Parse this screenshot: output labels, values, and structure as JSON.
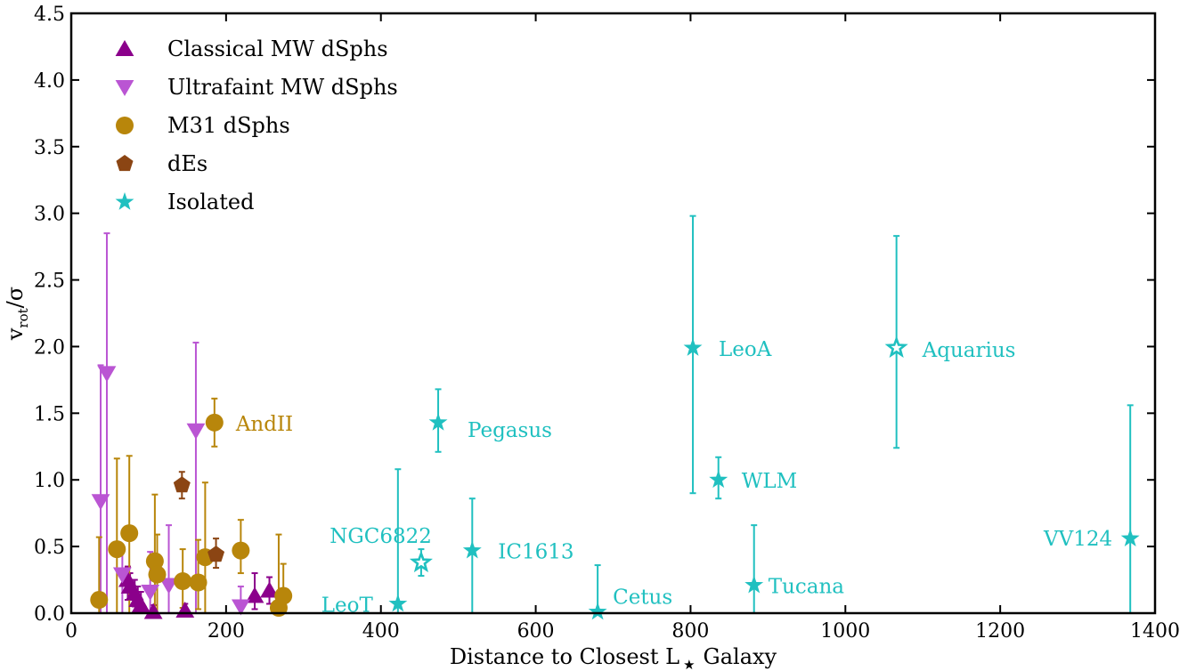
{
  "chart_data": {
    "type": "scatter",
    "title": "",
    "xlabel": "Distance to Closest L",
    "xlabel_subscript": "★",
    "xlabel_suffix": "Galaxy",
    "ylabel": "v",
    "ylabel_subscript": "rot",
    "ylabel_suffix": "/σ",
    "xlim": [
      0,
      1400
    ],
    "ylim": [
      0,
      4.5
    ],
    "xticks": [
      0,
      200,
      400,
      600,
      800,
      1000,
      1200,
      1400
    ],
    "yticks": [
      0.0,
      0.5,
      1.0,
      1.5,
      2.0,
      2.5,
      3.0,
      3.5,
      4.0,
      4.5
    ],
    "grid": false,
    "legend_position": "top-left",
    "series": [
      {
        "name": "Classical MW dSphs",
        "marker": "triangle-up",
        "color": "#8B008B",
        "points": [
          {
            "x": 73,
            "y": 0.25,
            "err_lo": 0.15,
            "err_hi": 0.1
          },
          {
            "x": 76,
            "y": 0.2,
            "err_lo": 0.1,
            "err_hi": 0.1
          },
          {
            "x": 82,
            "y": 0.15,
            "err_lo": 0.1,
            "err_hi": 0.1
          },
          {
            "x": 86,
            "y": 0.1,
            "err_lo": 0.1,
            "err_hi": 0.1
          },
          {
            "x": 90,
            "y": 0.06,
            "err_lo": 0.06,
            "err_hi": 0.1
          },
          {
            "x": 106,
            "y": 0.01,
            "err_lo": 0.01,
            "err_hi": 0.05
          },
          {
            "x": 147,
            "y": 0.02,
            "err_lo": 0.02,
            "err_hi": 0.05
          },
          {
            "x": 237,
            "y": 0.13,
            "err_lo": 0.1,
            "err_hi": 0.17
          },
          {
            "x": 256,
            "y": 0.17,
            "err_lo": 0.1,
            "err_hi": 0.1
          }
        ]
      },
      {
        "name": "Ultrafaint MW dSphs",
        "marker": "triangle-down",
        "color": "#BA55D3",
        "points": [
          {
            "x": 38,
            "y": 0.84,
            "err_lo": 0.84,
            "err_hi": 1.02
          },
          {
            "x": 46,
            "y": 1.8,
            "err_lo": 1.8,
            "err_hi": 1.05
          },
          {
            "x": 66,
            "y": 0.29,
            "err_lo": 0.29,
            "err_hi": 0.2
          },
          {
            "x": 102,
            "y": 0.16,
            "err_lo": 0.16,
            "err_hi": 0.3
          },
          {
            "x": 126,
            "y": 0.21,
            "err_lo": 0.21,
            "err_hi": 0.45
          },
          {
            "x": 161,
            "y": 1.37,
            "err_lo": 1.37,
            "err_hi": 0.66
          },
          {
            "x": 219,
            "y": 0.05,
            "err_lo": 0.05,
            "err_hi": 0.15
          }
        ]
      },
      {
        "name": "M31 dSphs",
        "marker": "circle",
        "color": "#B8860B",
        "points": [
          {
            "x": 36,
            "y": 0.1,
            "err_lo": 0.1,
            "err_hi": 0.47
          },
          {
            "x": 59,
            "y": 0.48,
            "err_lo": 0.48,
            "err_hi": 0.68
          },
          {
            "x": 75,
            "y": 0.6,
            "err_lo": 0.6,
            "err_hi": 0.58
          },
          {
            "x": 108,
            "y": 0.39,
            "err_lo": 0.39,
            "err_hi": 0.5
          },
          {
            "x": 111,
            "y": 0.29,
            "err_lo": 0.29,
            "err_hi": 0.3
          },
          {
            "x": 144,
            "y": 0.24,
            "err_lo": 0.2,
            "err_hi": 0.24
          },
          {
            "x": 164,
            "y": 0.23,
            "err_lo": 0.2,
            "err_hi": 0.32
          },
          {
            "x": 173,
            "y": 0.42,
            "err_lo": 0.42,
            "err_hi": 0.56
          },
          {
            "x": 185,
            "y": 1.43,
            "err_lo": 0.18,
            "err_hi": 0.18
          },
          {
            "x": 219,
            "y": 0.47,
            "err_lo": 0.17,
            "err_hi": 0.23
          },
          {
            "x": 268,
            "y": 0.04,
            "err_lo": 0.04,
            "err_hi": 0.55
          },
          {
            "x": 274,
            "y": 0.13,
            "err_lo": 0.13,
            "err_hi": 0.24
          }
        ]
      },
      {
        "name": "dEs",
        "marker": "pentagon",
        "color": "#8B4513",
        "points": [
          {
            "x": 143,
            "y": 0.96,
            "err_lo": 0.1,
            "err_hi": 0.1
          },
          {
            "x": 187,
            "y": 0.44,
            "err_lo": 0.1,
            "err_hi": 0.12
          }
        ]
      },
      {
        "name": "Isolated",
        "marker": "star",
        "color": "#20C0C0",
        "points": [
          {
            "x": 422,
            "y": 0.07,
            "err_lo": 0.07,
            "err_hi": 1.01,
            "label": "LeoT",
            "hollow": false
          },
          {
            "x": 452,
            "y": 0.38,
            "err_lo": 0.1,
            "err_hi": 0.1,
            "label": "NGC6822",
            "hollow": true
          },
          {
            "x": 474,
            "y": 1.43,
            "err_lo": 0.22,
            "err_hi": 0.25,
            "label": "Pegasus",
            "hollow": false
          },
          {
            "x": 518,
            "y": 0.47,
            "err_lo": 0.47,
            "err_hi": 0.39,
            "label": "IC1613",
            "hollow": false
          },
          {
            "x": 680,
            "y": 0.01,
            "err_lo": 0.01,
            "err_hi": 0.35,
            "label": "Cetus",
            "hollow": false
          },
          {
            "x": 803,
            "y": 1.99,
            "err_lo": 1.09,
            "err_hi": 0.99,
            "label": "LeoA",
            "hollow": false
          },
          {
            "x": 836,
            "y": 1.0,
            "err_lo": 0.14,
            "err_hi": 0.17,
            "label": "WLM",
            "hollow": false
          },
          {
            "x": 882,
            "y": 0.21,
            "err_lo": 0.21,
            "err_hi": 0.45,
            "label": "Tucana",
            "hollow": false
          },
          {
            "x": 1066,
            "y": 1.99,
            "err_lo": 0.75,
            "err_hi": 0.84,
            "label": "Aquarius",
            "hollow": true
          },
          {
            "x": 1368,
            "y": 0.56,
            "err_lo": 0.56,
            "err_hi": 1.0,
            "label": "VV124",
            "hollow": false
          }
        ]
      }
    ],
    "annotations": [
      {
        "text": "AndII",
        "color": "#B8860B",
        "x": 185,
        "y": 1.43,
        "side": "right"
      }
    ]
  }
}
